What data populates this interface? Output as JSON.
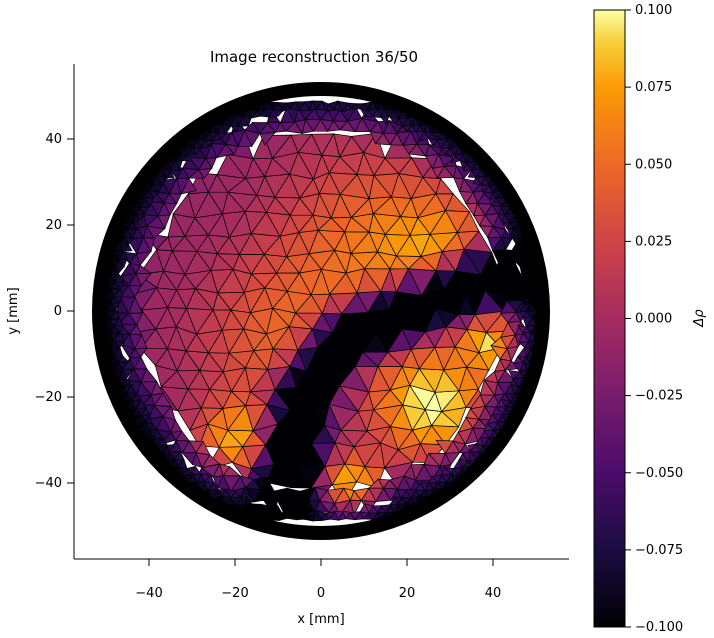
{
  "chart_data": {
    "type": "heatmap",
    "title": "Image reconstruction 36/50",
    "xlabel": "x [mm]",
    "ylabel": "y [mm]",
    "xlim": [
      -57,
      57
    ],
    "ylim": [
      -57,
      57
    ],
    "x_ticks": [
      -40,
      -20,
      0,
      20,
      40
    ],
    "y_ticks": [
      40,
      20,
      0,
      -20,
      -40
    ],
    "x_tick_labels": [
      "−40",
      "−20",
      "0",
      "20",
      "40"
    ],
    "y_tick_labels": [
      "40",
      "20",
      "0",
      "−20",
      "−40"
    ],
    "domain_radius": 50,
    "colormap": "inferno",
    "colorbar": {
      "label": "Δρ",
      "range": [
        -0.1,
        0.1
      ],
      "ticks": [
        0.1,
        0.075,
        0.05,
        0.025,
        0.0,
        -0.025,
        -0.05,
        -0.075,
        -0.1
      ],
      "tick_labels": [
        "0.100",
        "0.075",
        "0.050",
        "0.025",
        "0.000",
        "−0.025",
        "−0.050",
        "−0.075",
        "−0.100"
      ]
    },
    "features": [
      {
        "kind": "low-conductivity band",
        "x": [
          -8,
          40
        ],
        "y": [
          -40,
          8
        ],
        "value": -0.1
      },
      {
        "kind": "positive region",
        "x": [
          20,
          45
        ],
        "y": [
          -30,
          -5
        ],
        "value": 0.1
      },
      {
        "kind": "positive region",
        "x": [
          -25,
          40
        ],
        "y": [
          5,
          25
        ],
        "value": 0.05
      },
      {
        "kind": "positive region",
        "x": [
          0,
          15
        ],
        "y": [
          -45,
          -35
        ],
        "value": 0.09
      },
      {
        "kind": "positive region",
        "x": [
          -25,
          -15
        ],
        "y": [
          -35,
          -25
        ],
        "value": 0.07
      }
    ],
    "boundary_value": -0.1,
    "background_value": -0.01
  }
}
